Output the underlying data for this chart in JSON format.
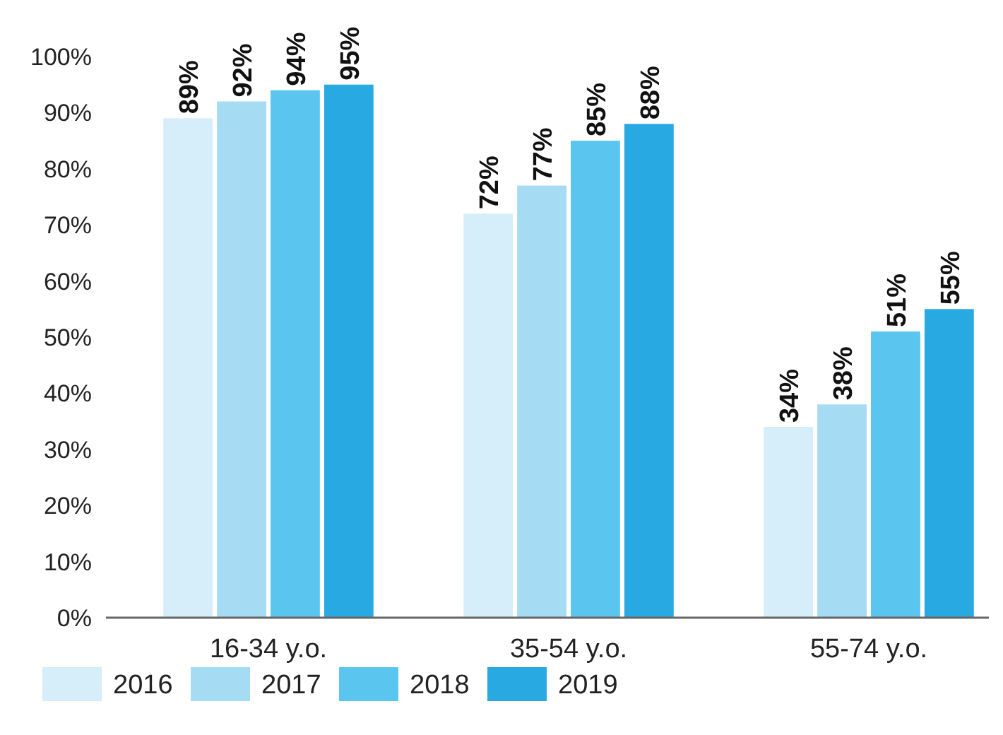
{
  "chart_data": {
    "type": "bar",
    "categories": [
      "16-34 y.o.",
      "35-54 y.o.",
      "55-74 y.o."
    ],
    "series": [
      {
        "name": "2016",
        "color": "#d5eef9",
        "values": [
          89,
          72,
          34
        ],
        "value_labels": [
          "89%",
          "72%",
          "34%"
        ]
      },
      {
        "name": "2017",
        "color": "#a6dbf4",
        "values": [
          92,
          77,
          38
        ],
        "value_labels": [
          "92%",
          "77%",
          "38%"
        ]
      },
      {
        "name": "2018",
        "color": "#5ac6f0",
        "values": [
          94,
          85,
          51
        ],
        "value_labels": [
          "94%",
          "85%",
          "51%"
        ]
      },
      {
        "name": "2019",
        "color": "#29a9e1",
        "values": [
          95,
          88,
          55
        ],
        "value_labels": [
          "95%",
          "88%",
          "55%"
        ]
      }
    ],
    "ylim": [
      0,
      100
    ],
    "yticks": [
      {
        "value": 0,
        "label": "0%"
      },
      {
        "value": 10,
        "label": "10%"
      },
      {
        "value": 20,
        "label": "20%"
      },
      {
        "value": 30,
        "label": "30%"
      },
      {
        "value": 40,
        "label": "40%"
      },
      {
        "value": 50,
        "label": "50%"
      },
      {
        "value": 60,
        "label": "60%"
      },
      {
        "value": 70,
        "label": "70%"
      },
      {
        "value": 80,
        "label": "80%"
      },
      {
        "value": 90,
        "label": "90%"
      },
      {
        "value": 100,
        "label": "100%"
      }
    ],
    "grid": false,
    "legend": "bottom left"
  }
}
